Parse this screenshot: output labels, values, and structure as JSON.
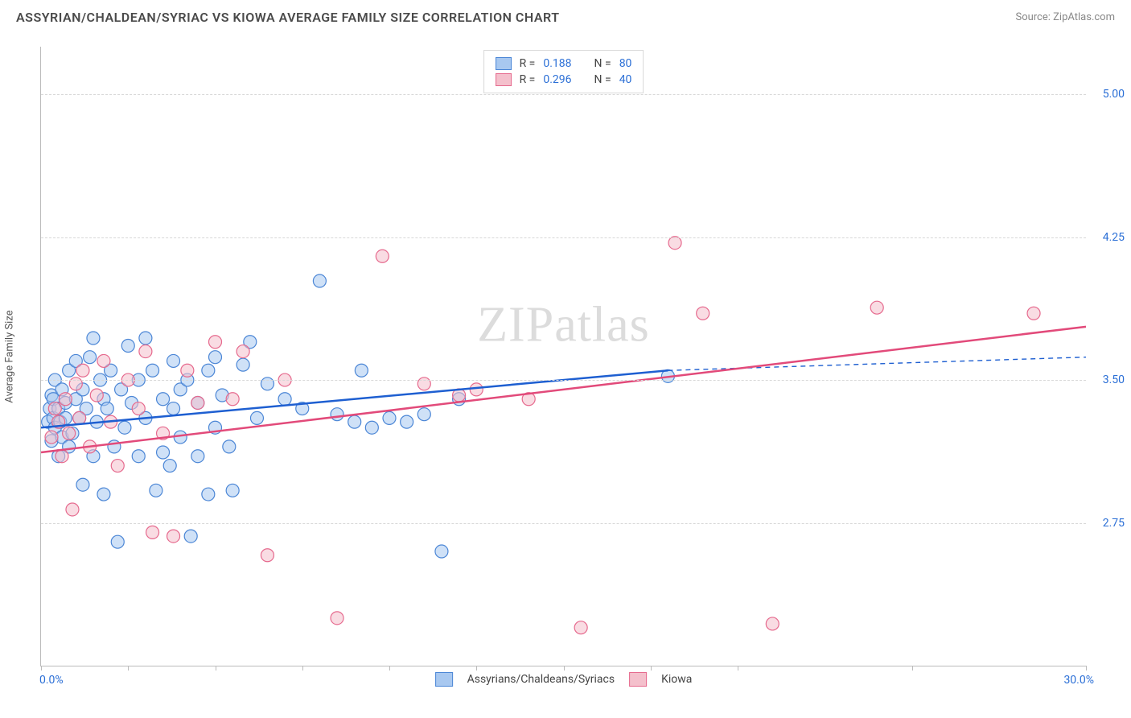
{
  "header": {
    "title": "ASSYRIAN/CHALDEAN/SYRIAC VS KIOWA AVERAGE FAMILY SIZE CORRELATION CHART",
    "source": "Source: ZipAtlas.com"
  },
  "chart": {
    "type": "scatter",
    "ylabel": "Average Family Size",
    "watermark": "ZIPatlas",
    "background_color": "#ffffff",
    "grid_color": "#d8d8d8",
    "axis_color": "#bbbbbb",
    "xlim": [
      0,
      30
    ],
    "ylim": [
      2.0,
      5.25
    ],
    "xticks": [
      0,
      2.5,
      5,
      7.5,
      10,
      12.5,
      15,
      17.5,
      20,
      25,
      30
    ],
    "yticks": [
      {
        "v": 2.75,
        "label": "2.75"
      },
      {
        "v": 3.5,
        "label": "3.50"
      },
      {
        "v": 4.25,
        "label": "4.25"
      },
      {
        "v": 5.0,
        "label": "5.00"
      }
    ],
    "xaxis_min_label": "0.0%",
    "xaxis_max_label": "30.0%",
    "marker_radius": 8,
    "marker_opacity": 0.55,
    "line_width_solid": 2.5,
    "line_width_dashed": 1.4,
    "series": [
      {
        "name": "Assyrians/Chaldeans/Syriacs",
        "short": "acs",
        "color_fill": "#a8c8f0",
        "color_stroke": "#4b86d6",
        "line_color": "#1e5fd1",
        "r_value": "0.188",
        "n_value": "80",
        "regression": {
          "x1": 0,
          "y1": 3.25,
          "x2": 18,
          "y2": 3.55
        },
        "extrapolation": {
          "x1": 18,
          "y1": 3.55,
          "x2": 30,
          "y2": 3.62
        },
        "points": [
          {
            "x": 0.2,
            "y": 3.28
          },
          {
            "x": 0.25,
            "y": 3.35
          },
          {
            "x": 0.3,
            "y": 3.42
          },
          {
            "x": 0.3,
            "y": 3.18
          },
          {
            "x": 0.35,
            "y": 3.3
          },
          {
            "x": 0.35,
            "y": 3.4
          },
          {
            "x": 0.4,
            "y": 3.25
          },
          {
            "x": 0.4,
            "y": 3.5
          },
          {
            "x": 0.5,
            "y": 3.1
          },
          {
            "x": 0.5,
            "y": 3.35
          },
          {
            "x": 0.55,
            "y": 3.28
          },
          {
            "x": 0.6,
            "y": 3.2
          },
          {
            "x": 0.6,
            "y": 3.45
          },
          {
            "x": 0.7,
            "y": 3.3
          },
          {
            "x": 0.7,
            "y": 3.38
          },
          {
            "x": 0.8,
            "y": 3.15
          },
          {
            "x": 0.8,
            "y": 3.55
          },
          {
            "x": 0.9,
            "y": 3.22
          },
          {
            "x": 1.0,
            "y": 3.4
          },
          {
            "x": 1.0,
            "y": 3.6
          },
          {
            "x": 1.1,
            "y": 3.3
          },
          {
            "x": 1.2,
            "y": 2.95
          },
          {
            "x": 1.2,
            "y": 3.45
          },
          {
            "x": 1.3,
            "y": 3.35
          },
          {
            "x": 1.4,
            "y": 3.62
          },
          {
            "x": 1.5,
            "y": 3.72
          },
          {
            "x": 1.5,
            "y": 3.1
          },
          {
            "x": 1.6,
            "y": 3.28
          },
          {
            "x": 1.7,
            "y": 3.5
          },
          {
            "x": 1.8,
            "y": 2.9
          },
          {
            "x": 1.8,
            "y": 3.4
          },
          {
            "x": 1.9,
            "y": 3.35
          },
          {
            "x": 2.0,
            "y": 3.55
          },
          {
            "x": 2.1,
            "y": 3.15
          },
          {
            "x": 2.2,
            "y": 2.65
          },
          {
            "x": 2.3,
            "y": 3.45
          },
          {
            "x": 2.4,
            "y": 3.25
          },
          {
            "x": 2.5,
            "y": 3.68
          },
          {
            "x": 2.6,
            "y": 3.38
          },
          {
            "x": 2.8,
            "y": 3.1
          },
          {
            "x": 2.8,
            "y": 3.5
          },
          {
            "x": 3.0,
            "y": 3.3
          },
          {
            "x": 3.0,
            "y": 3.72
          },
          {
            "x": 3.2,
            "y": 3.55
          },
          {
            "x": 3.3,
            "y": 2.92
          },
          {
            "x": 3.5,
            "y": 3.4
          },
          {
            "x": 3.5,
            "y": 3.12
          },
          {
            "x": 3.7,
            "y": 3.05
          },
          {
            "x": 3.8,
            "y": 3.6
          },
          {
            "x": 3.8,
            "y": 3.35
          },
          {
            "x": 4.0,
            "y": 3.2
          },
          {
            "x": 4.0,
            "y": 3.45
          },
          {
            "x": 4.2,
            "y": 3.5
          },
          {
            "x": 4.3,
            "y": 2.68
          },
          {
            "x": 4.5,
            "y": 3.1
          },
          {
            "x": 4.5,
            "y": 3.38
          },
          {
            "x": 4.8,
            "y": 3.55
          },
          {
            "x": 4.8,
            "y": 2.9
          },
          {
            "x": 5.0,
            "y": 3.62
          },
          {
            "x": 5.0,
            "y": 3.25
          },
          {
            "x": 5.2,
            "y": 3.42
          },
          {
            "x": 5.4,
            "y": 3.15
          },
          {
            "x": 5.5,
            "y": 2.92
          },
          {
            "x": 5.8,
            "y": 3.58
          },
          {
            "x": 6.0,
            "y": 3.7
          },
          {
            "x": 6.2,
            "y": 3.3
          },
          {
            "x": 6.5,
            "y": 3.48
          },
          {
            "x": 7.0,
            "y": 3.4
          },
          {
            "x": 7.5,
            "y": 3.35
          },
          {
            "x": 8.0,
            "y": 4.02
          },
          {
            "x": 8.5,
            "y": 3.32
          },
          {
            "x": 9.0,
            "y": 3.28
          },
          {
            "x": 9.2,
            "y": 3.55
          },
          {
            "x": 9.5,
            "y": 3.25
          },
          {
            "x": 10.0,
            "y": 3.3
          },
          {
            "x": 10.5,
            "y": 3.28
          },
          {
            "x": 11.0,
            "y": 3.32
          },
          {
            "x": 11.5,
            "y": 2.6
          },
          {
            "x": 12.0,
            "y": 3.4
          },
          {
            "x": 18.0,
            "y": 3.52
          }
        ]
      },
      {
        "name": "Kiowa",
        "short": "kiowa",
        "color_fill": "#f4c0cc",
        "color_stroke": "#e66a8e",
        "line_color": "#e24a7a",
        "r_value": "0.296",
        "n_value": "40",
        "regression": {
          "x1": 0,
          "y1": 3.12,
          "x2": 30,
          "y2": 3.78
        },
        "extrapolation": null,
        "points": [
          {
            "x": 0.3,
            "y": 3.2
          },
          {
            "x": 0.4,
            "y": 3.35
          },
          {
            "x": 0.5,
            "y": 3.28
          },
          {
            "x": 0.6,
            "y": 3.1
          },
          {
            "x": 0.7,
            "y": 3.4
          },
          {
            "x": 0.8,
            "y": 3.22
          },
          {
            "x": 0.9,
            "y": 2.82
          },
          {
            "x": 1.0,
            "y": 3.48
          },
          {
            "x": 1.1,
            "y": 3.3
          },
          {
            "x": 1.2,
            "y": 3.55
          },
          {
            "x": 1.4,
            "y": 3.15
          },
          {
            "x": 1.6,
            "y": 3.42
          },
          {
            "x": 1.8,
            "y": 3.6
          },
          {
            "x": 2.0,
            "y": 3.28
          },
          {
            "x": 2.2,
            "y": 3.05
          },
          {
            "x": 2.5,
            "y": 3.5
          },
          {
            "x": 2.8,
            "y": 3.35
          },
          {
            "x": 3.0,
            "y": 3.65
          },
          {
            "x": 3.2,
            "y": 2.7
          },
          {
            "x": 3.5,
            "y": 3.22
          },
          {
            "x": 3.8,
            "y": 2.68
          },
          {
            "x": 4.2,
            "y": 3.55
          },
          {
            "x": 4.5,
            "y": 3.38
          },
          {
            "x": 5.0,
            "y": 3.7
          },
          {
            "x": 5.5,
            "y": 3.4
          },
          {
            "x": 5.8,
            "y": 3.65
          },
          {
            "x": 6.5,
            "y": 2.58
          },
          {
            "x": 7.0,
            "y": 3.5
          },
          {
            "x": 8.5,
            "y": 2.25
          },
          {
            "x": 9.8,
            "y": 4.15
          },
          {
            "x": 11.0,
            "y": 3.48
          },
          {
            "x": 12.0,
            "y": 3.42
          },
          {
            "x": 12.5,
            "y": 3.45
          },
          {
            "x": 14.0,
            "y": 3.4
          },
          {
            "x": 15.5,
            "y": 2.2
          },
          {
            "x": 18.2,
            "y": 4.22
          },
          {
            "x": 19.0,
            "y": 3.85
          },
          {
            "x": 21.0,
            "y": 2.22
          },
          {
            "x": 24.0,
            "y": 3.88
          },
          {
            "x": 28.5,
            "y": 3.85
          }
        ]
      }
    ],
    "top_legend": {
      "rows": [
        {
          "swatch": "#a8c8f0",
          "stroke": "#4b86d6",
          "r_label": "R =",
          "r": "0.188",
          "n_label": "N =",
          "n": "80"
        },
        {
          "swatch": "#f4c0cc",
          "stroke": "#e66a8e",
          "r_label": "R =",
          "r": "0.296",
          "n_label": "N =",
          "n": "40"
        }
      ]
    },
    "bottom_legend": [
      {
        "swatch": "#a8c8f0",
        "stroke": "#4b86d6",
        "label": "Assyrians/Chaldeans/Syriacs"
      },
      {
        "swatch": "#f4c0cc",
        "stroke": "#e66a8e",
        "label": "Kiowa"
      }
    ]
  }
}
